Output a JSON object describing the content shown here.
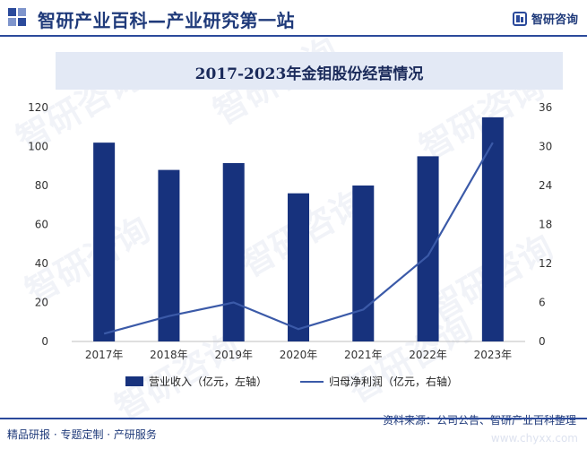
{
  "header": {
    "title": "智研产业百科—产业研究第一站",
    "brand": "智研咨询",
    "logo_icon": "zhiyan-logo-icon"
  },
  "chart_data": {
    "type": "bar",
    "title": "2017-2023年金钼股份经营情况",
    "categories": [
      "2017年",
      "2018年",
      "2019年",
      "2020年",
      "2021年",
      "2022年",
      "2023年"
    ],
    "series": [
      {
        "name": "营业收入（亿元，左轴）",
        "type": "bar",
        "axis": "left",
        "color": "#17327d",
        "values": [
          102,
          88,
          91.5,
          76,
          80,
          95,
          115
        ]
      },
      {
        "name": "归母净利润（亿元，右轴）",
        "type": "line",
        "axis": "right",
        "color": "#3b5aa8",
        "values": [
          1.2,
          3.9,
          6.0,
          1.9,
          4.9,
          13.2,
          30.6
        ]
      }
    ],
    "y_left": {
      "min": 0,
      "max": 120,
      "ticks": [
        "0",
        "20",
        "40",
        "60",
        "80",
        "100",
        "120"
      ]
    },
    "y_right": {
      "min": 0,
      "max": 36,
      "ticks": [
        "0",
        "6",
        "12",
        "18",
        "24",
        "30",
        "36"
      ]
    },
    "grid": false,
    "legend_position": "bottom"
  },
  "footer": {
    "left": "精品研报 · 专题定制 · 产研服务",
    "right": "资料来源：公司公告、智研产业百科整理"
  },
  "watermark": {
    "text": "智研咨询",
    "small": "www.chyxx.com"
  }
}
